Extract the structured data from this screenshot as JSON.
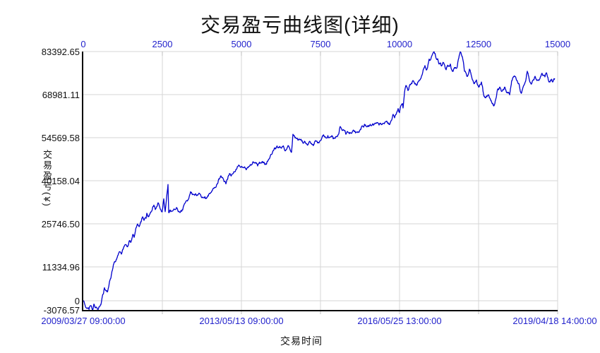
{
  "title": "交易盈亏曲线图(详细)",
  "y_axis": {
    "label": "交易盈亏(¥)",
    "ticks": [
      83392.65,
      68981.11,
      54569.58,
      40158.04,
      25746.5,
      11334.96,
      0,
      -3076.57
    ],
    "tick_labels": [
      "83392.65",
      "68981.11",
      "54569.58",
      "40158.04",
      "25746.50",
      "11334.96",
      "0",
      "-3076.57"
    ],
    "min": -3076.57,
    "max": 83392.65
  },
  "x_axis_top": {
    "ticks": [
      0,
      2500,
      5000,
      7500,
      10000,
      12500,
      15000
    ],
    "tick_labels": [
      "0",
      "2500",
      "5000",
      "7500",
      "10000",
      "12500",
      "15000"
    ],
    "min": 0,
    "max": 15000
  },
  "x_axis_bottom": {
    "label": "交易时间",
    "tick_positions": [
      0,
      5000,
      10000,
      15000
    ],
    "tick_labels": [
      "2009/03/27 09:00:00",
      "2013/05/13 09:00:00",
      "2016/05/25 13:00:00",
      "2019/04/18 14:00:00"
    ]
  },
  "colors": {
    "curve": "#0000CC",
    "blue_tick_text": "#2222CC",
    "black_text": "#111111",
    "grid": "#D6D6D6",
    "axis": "#000000",
    "background": "#FFFFFF"
  },
  "chart_data": {
    "type": "line",
    "title": "交易盈亏曲线图(详细)",
    "xlabel": "交易时间",
    "ylabel": "交易盈亏(¥)",
    "xlim": [
      0,
      15000
    ],
    "ylim": [
      -3076.57,
      83392.65
    ],
    "grid": true,
    "legend": "none",
    "x_top_ticks": [
      0,
      2500,
      5000,
      7500,
      10000,
      12500,
      15000
    ],
    "y_ticks": [
      83392.65,
      68981.11,
      54569.58,
      40158.04,
      25746.5,
      11334.96,
      0,
      -3076.57
    ],
    "x_bottom_date_ticks": [
      "2009/03/27 09:00:00",
      "2013/05/13 09:00:00",
      "2016/05/25 13:00:00",
      "2019/04/18 14:00:00"
    ],
    "series": [
      {
        "name": "交易盈亏",
        "points": [
          [
            0,
            0
          ],
          [
            45,
            -1150
          ],
          [
            134,
            -2590
          ],
          [
            180,
            -2950
          ],
          [
            223,
            -1630
          ],
          [
            290,
            -3070
          ],
          [
            335,
            -1150
          ],
          [
            402,
            -2110
          ],
          [
            446,
            -2830
          ],
          [
            536,
            -1630
          ],
          [
            603,
            1500
          ],
          [
            670,
            4360
          ],
          [
            759,
            2920
          ],
          [
            800,
            4500
          ],
          [
            870,
            7500
          ],
          [
            937,
            11000
          ],
          [
            1004,
            13000
          ],
          [
            1049,
            13800
          ],
          [
            1094,
            15200
          ],
          [
            1161,
            16400
          ],
          [
            1205,
            15600
          ],
          [
            1272,
            17600
          ],
          [
            1339,
            18800
          ],
          [
            1384,
            18100
          ],
          [
            1451,
            20000
          ],
          [
            1496,
            19600
          ],
          [
            1563,
            22100
          ],
          [
            1607,
            21200
          ],
          [
            1674,
            24500
          ],
          [
            1719,
            25700
          ],
          [
            1763,
            24800
          ],
          [
            1830,
            26400
          ],
          [
            1875,
            28100
          ],
          [
            1920,
            26900
          ],
          [
            1986,
            27600
          ],
          [
            2009,
            29300
          ],
          [
            2053,
            28100
          ],
          [
            2098,
            28800
          ],
          [
            2165,
            30000
          ],
          [
            2232,
            32000
          ],
          [
            2277,
            30500
          ],
          [
            2321,
            31500
          ],
          [
            2388,
            32400
          ],
          [
            2433,
            30700
          ],
          [
            2500,
            30000
          ],
          [
            2545,
            34100
          ],
          [
            2590,
            29800
          ],
          [
            2679,
            38900
          ],
          [
            2700,
            29500
          ],
          [
            2790,
            30000
          ],
          [
            2946,
            31200
          ],
          [
            3058,
            29500
          ],
          [
            3170,
            31700
          ],
          [
            3281,
            33500
          ],
          [
            3393,
            36500
          ],
          [
            3504,
            35500
          ],
          [
            3616,
            35300
          ],
          [
            3728,
            34800
          ],
          [
            3839,
            34800
          ],
          [
            3951,
            35000
          ],
          [
            4062,
            36700
          ],
          [
            4174,
            37900
          ],
          [
            4286,
            40800
          ],
          [
            4397,
            41300
          ],
          [
            4509,
            39100
          ],
          [
            4621,
            42500
          ],
          [
            4732,
            42500
          ],
          [
            4844,
            44000
          ],
          [
            4955,
            44900
          ],
          [
            5067,
            44500
          ],
          [
            5179,
            44400
          ],
          [
            5290,
            45600
          ],
          [
            5402,
            46100
          ],
          [
            5513,
            45100
          ],
          [
            5625,
            46100
          ],
          [
            5737,
            45600
          ],
          [
            5848,
            47000
          ],
          [
            5960,
            49000
          ],
          [
            6071,
            50800
          ],
          [
            6183,
            51400
          ],
          [
            6295,
            51600
          ],
          [
            6406,
            50400
          ],
          [
            6518,
            51200
          ],
          [
            6585,
            49700
          ],
          [
            6629,
            55700
          ],
          [
            6696,
            54500
          ],
          [
            6786,
            53800
          ],
          [
            6875,
            54000
          ],
          [
            6964,
            52800
          ],
          [
            7076,
            52300
          ],
          [
            7188,
            52800
          ],
          [
            7299,
            52400
          ],
          [
            7411,
            52800
          ],
          [
            7522,
            53800
          ],
          [
            7567,
            55200
          ],
          [
            7679,
            54500
          ],
          [
            7790,
            54700
          ],
          [
            7902,
            54200
          ],
          [
            8013,
            54900
          ],
          [
            8080,
            55900
          ],
          [
            8125,
            58300
          ],
          [
            8192,
            57000
          ],
          [
            8304,
            55700
          ],
          [
            8415,
            55900
          ],
          [
            8527,
            56900
          ],
          [
            8638,
            56400
          ],
          [
            8750,
            57100
          ],
          [
            8862,
            58100
          ],
          [
            8929,
            58800
          ],
          [
            9018,
            58300
          ],
          [
            9129,
            58800
          ],
          [
            9241,
            59300
          ],
          [
            9353,
            58800
          ],
          [
            9464,
            59300
          ],
          [
            9576,
            60000
          ],
          [
            9643,
            59500
          ],
          [
            9754,
            60500
          ],
          [
            9799,
            62400
          ],
          [
            9844,
            61200
          ],
          [
            9911,
            63100
          ],
          [
            9955,
            64300
          ],
          [
            10000,
            62900
          ],
          [
            10045,
            65300
          ],
          [
            10089,
            66000
          ],
          [
            10112,
            64500
          ],
          [
            10156,
            69600
          ],
          [
            10201,
            72000
          ],
          [
            10268,
            70300
          ],
          [
            10357,
            72500
          ],
          [
            10424,
            73700
          ],
          [
            10491,
            72500
          ],
          [
            10580,
            73200
          ],
          [
            10647,
            73900
          ],
          [
            10714,
            75600
          ],
          [
            10804,
            78700
          ],
          [
            10871,
            77500
          ],
          [
            10938,
            80900
          ],
          [
            11027,
            82100
          ],
          [
            11094,
            83300
          ],
          [
            11161,
            81100
          ],
          [
            11250,
            79200
          ],
          [
            11317,
            78700
          ],
          [
            11384,
            79700
          ],
          [
            11473,
            77300
          ],
          [
            11540,
            78500
          ],
          [
            11607,
            79200
          ],
          [
            11697,
            76800
          ],
          [
            11764,
            78000
          ],
          [
            11831,
            78700
          ],
          [
            11920,
            83300
          ],
          [
            11964,
            82100
          ],
          [
            12009,
            80400
          ],
          [
            12054,
            76800
          ],
          [
            12143,
            75100
          ],
          [
            12210,
            77500
          ],
          [
            12277,
            75100
          ],
          [
            12366,
            72700
          ],
          [
            12433,
            73900
          ],
          [
            12500,
            71500
          ],
          [
            12589,
            73200
          ],
          [
            12656,
            69100
          ],
          [
            12723,
            67900
          ],
          [
            12813,
            68900
          ],
          [
            12880,
            67200
          ],
          [
            12946,
            66000
          ],
          [
            12991,
            65300
          ],
          [
            13058,
            68000
          ],
          [
            13103,
            70800
          ],
          [
            13170,
            71500
          ],
          [
            13259,
            70300
          ],
          [
            13326,
            71500
          ],
          [
            13393,
            69600
          ],
          [
            13483,
            68900
          ],
          [
            13549,
            73700
          ],
          [
            13616,
            74900
          ],
          [
            13706,
            73700
          ],
          [
            13772,
            72700
          ],
          [
            13839,
            69600
          ],
          [
            13929,
            72000
          ],
          [
            13996,
            73900
          ],
          [
            14040,
            76800
          ],
          [
            14085,
            75100
          ],
          [
            14152,
            72700
          ],
          [
            14219,
            73700
          ],
          [
            14286,
            75100
          ],
          [
            14375,
            73900
          ],
          [
            14442,
            74400
          ],
          [
            14509,
            76100
          ],
          [
            14598,
            74900
          ],
          [
            14643,
            76300
          ],
          [
            14710,
            73700
          ],
          [
            14777,
            73900
          ],
          [
            14844,
            73200
          ],
          [
            14911,
            74400
          ]
        ]
      }
    ]
  }
}
